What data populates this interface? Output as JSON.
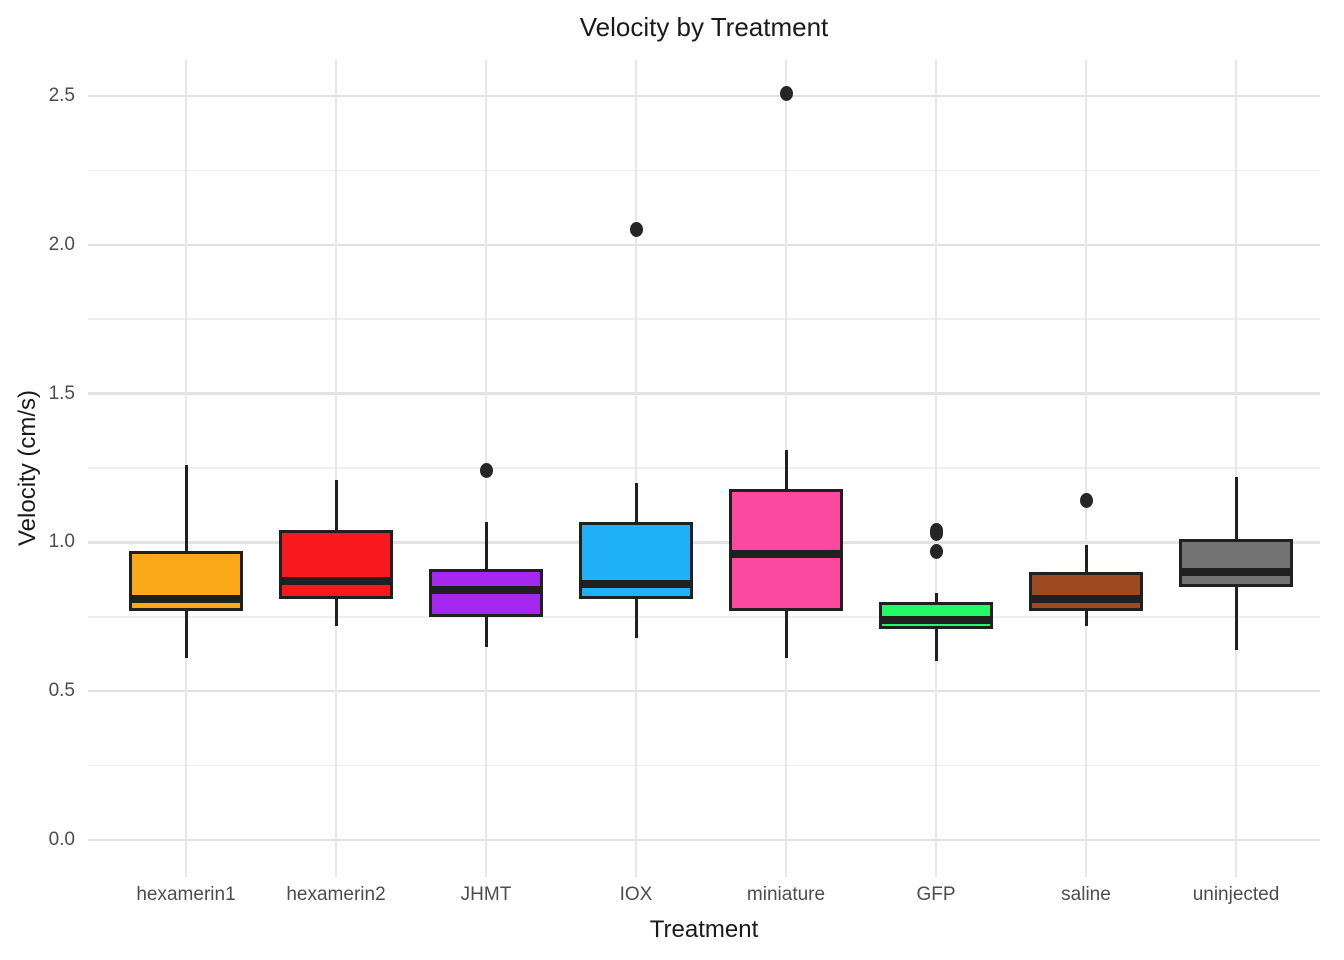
{
  "title": "Velocity by Treatment",
  "chart_data": {
    "type": "boxplot",
    "title": "Velocity by Treatment",
    "xlabel": "Treatment",
    "ylabel": "Velocity (cm/s)",
    "ylim": [
      -0.12,
      2.62
    ],
    "grid": "major+minor, no axis lines, white background",
    "legend": "none",
    "y_major_ticks": [
      0.0,
      0.5,
      1.0,
      1.5,
      2.0,
      2.5
    ],
    "y_major_tick_labels": [
      "0.0",
      "0.5",
      "1.0",
      "1.5",
      "2.0",
      "2.5"
    ],
    "y_minor_ticks": [
      0.25,
      0.75,
      1.25,
      1.75,
      2.25
    ],
    "categories": [
      "hexamerin1",
      "hexamerin2",
      "JHMT",
      "IOX",
      "miniature",
      "GFP",
      "saline",
      "uninjected"
    ],
    "boxes": [
      {
        "label": "hexamerin1",
        "fill_color": "#FAA919",
        "whisker_low": 0.61,
        "q1": 0.77,
        "median": 0.81,
        "q3": 0.97,
        "whisker_high": 1.26,
        "outliers": []
      },
      {
        "label": "hexamerin2",
        "fill_color": "#F8191F",
        "whisker_low": 0.72,
        "q1": 0.81,
        "median": 0.87,
        "q3": 1.04,
        "whisker_high": 1.21,
        "outliers": []
      },
      {
        "label": "JHMT",
        "fill_color": "#A428F0",
        "whisker_low": 0.65,
        "q1": 0.75,
        "median": 0.84,
        "q3": 0.91,
        "whisker_high": 1.07,
        "outliers": [
          1.24
        ]
      },
      {
        "label": "IOX",
        "fill_color": "#1FB0F5",
        "whisker_low": 0.68,
        "q1": 0.81,
        "median": 0.86,
        "q3": 1.07,
        "whisker_high": 1.2,
        "outliers": [
          2.05
        ]
      },
      {
        "label": "miniature",
        "fill_color": "#FB48A0",
        "whisker_low": 0.61,
        "q1": 0.77,
        "median": 0.96,
        "q3": 1.18,
        "whisker_high": 1.31,
        "outliers": [
          2.51
        ]
      },
      {
        "label": "GFP",
        "fill_color": "#22FB66",
        "whisker_low": 0.6,
        "q1": 0.71,
        "median": 0.74,
        "q3": 0.8,
        "whisker_high": 0.83,
        "outliers": [
          1.04,
          1.03,
          0.97
        ]
      },
      {
        "label": "saline",
        "fill_color": "#9E4A21",
        "whisker_low": 0.72,
        "q1": 0.77,
        "median": 0.81,
        "q3": 0.9,
        "whisker_high": 0.99,
        "outliers": [
          1.14
        ]
      },
      {
        "label": "uninjected",
        "fill_color": "#737373",
        "whisker_low": 0.64,
        "q1": 0.85,
        "median": 0.9,
        "q3": 1.01,
        "whisker_high": 1.22,
        "outliers": []
      }
    ],
    "style": {
      "box_border_color": "#202020",
      "median_color": "#202020",
      "whisker_color": "#202020",
      "outlier_color": "#252525",
      "major_grid_color": "#e2e2e2",
      "minor_grid_color": "#efefef",
      "tick_label_color": "#4d4d4d",
      "axis_title_color": "#1a1a1a"
    }
  }
}
